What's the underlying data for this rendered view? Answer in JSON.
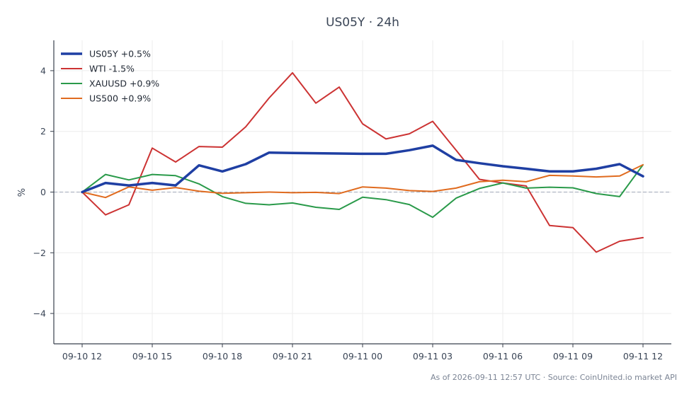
{
  "chart_data": {
    "type": "line",
    "title": "US05Y · 24h",
    "xlabel": "",
    "ylabel": "%",
    "ylim": [
      -5,
      5
    ],
    "yticks": [
      -4,
      -2,
      0,
      2,
      4
    ],
    "ytick_labels": [
      "−4",
      "−2",
      "0",
      "2",
      "4"
    ],
    "xlim": [
      0,
      24.3
    ],
    "xticks": [
      0,
      3,
      6,
      9,
      12,
      15,
      18,
      21,
      24
    ],
    "xtick_labels": [
      "09-10 12",
      "09-10 15",
      "09-10 18",
      "09-10 21",
      "09-11 00",
      "09-11 03",
      "09-11 06",
      "09-11 09",
      "09-11 12"
    ],
    "grid": true,
    "legend_position": "top-left",
    "zero_line": true,
    "x": [
      0,
      1,
      2,
      3,
      4,
      5,
      6,
      7,
      8,
      9,
      10,
      11,
      12,
      13,
      14,
      15,
      16,
      17,
      18,
      19,
      20,
      21,
      22,
      23,
      24
    ],
    "series": [
      {
        "name": "US05Y +0.5%",
        "color": "#1f3fa3",
        "width": 3.5,
        "values": [
          0.0,
          0.3,
          0.22,
          0.3,
          0.22,
          0.88,
          0.68,
          0.92,
          1.3,
          1.29,
          1.28,
          1.27,
          1.26,
          1.26,
          1.38,
          1.53,
          1.06,
          0.95,
          0.85,
          0.77,
          0.68,
          0.68,
          0.77,
          0.92,
          0.52
        ]
      },
      {
        "name": "WTI -1.5%",
        "color": "#cc3333",
        "width": 2,
        "values": [
          0.0,
          -0.75,
          -0.42,
          1.45,
          0.99,
          1.5,
          1.48,
          2.15,
          3.1,
          3.93,
          2.93,
          3.46,
          2.25,
          1.75,
          1.92,
          2.33,
          1.38,
          0.42,
          0.3,
          0.2,
          -1.1,
          -1.17,
          -1.98,
          -1.62,
          -1.5
        ]
      },
      {
        "name": "XAUUSD +0.9%",
        "color": "#2a9a4a",
        "width": 2,
        "values": [
          0.0,
          0.58,
          0.4,
          0.58,
          0.54,
          0.27,
          -0.15,
          -0.37,
          -0.42,
          -0.36,
          -0.5,
          -0.57,
          -0.17,
          -0.25,
          -0.41,
          -0.83,
          -0.2,
          0.12,
          0.3,
          0.13,
          0.16,
          0.14,
          -0.05,
          -0.15,
          0.9
        ]
      },
      {
        "name": "US500 +0.9%",
        "color": "#e06b1f",
        "width": 2,
        "values": [
          0.0,
          -0.18,
          0.17,
          0.06,
          0.15,
          0.03,
          -0.04,
          -0.02,
          0.0,
          -0.02,
          -0.01,
          -0.05,
          0.17,
          0.13,
          0.05,
          0.02,
          0.13,
          0.34,
          0.39,
          0.34,
          0.55,
          0.53,
          0.5,
          0.53,
          0.9
        ]
      }
    ],
    "footer": "As of 2026-09-11 12:57 UTC · Source: CoinUnited.io market API"
  }
}
